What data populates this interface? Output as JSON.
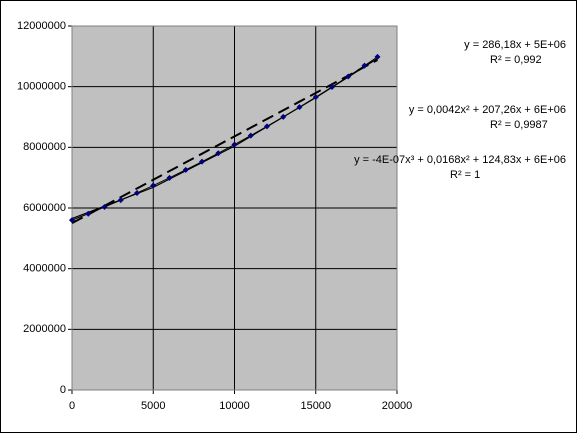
{
  "chart_data": {
    "type": "scatter",
    "xlim": [
      0,
      20000
    ],
    "xticks": [
      0,
      5000,
      10000,
      15000,
      20000
    ],
    "ylim": [
      0,
      12000000
    ],
    "yticks": [
      0,
      2000000,
      4000000,
      6000000,
      8000000,
      10000000,
      12000000
    ],
    "grid": true,
    "background": "#c0c0c0",
    "series": [
      {
        "color": "#000080",
        "x": [
          0,
          1000,
          2000,
          3000,
          4000,
          5000,
          6000,
          7000,
          8000,
          9000,
          10000,
          11000,
          12000,
          13000,
          14000,
          15000,
          16000,
          17000,
          18000,
          18800
        ],
        "values": [
          5600000,
          5811000,
          6031000,
          6260000,
          6496000,
          6741000,
          6995000,
          7257000,
          7527000,
          7806000,
          8093000,
          8388000,
          8692000,
          9004000,
          9325000,
          9654000,
          9991000,
          10337000,
          10692000,
          10981000
        ]
      }
    ],
    "trendlines": [
      {
        "color": "#000000",
        "style": "dashed",
        "x": [
          0,
          18800
        ],
        "values": [
          5500000,
          10880000
        ]
      },
      {
        "color": "#000000",
        "style": "solid",
        "x": [
          0,
          5000,
          10000,
          15000,
          18800
        ],
        "values": [
          5650000,
          6680000,
          8040000,
          9640000,
          10930000
        ]
      }
    ],
    "annotations": [
      "y = 286,18x + 5E+06",
      "R² = 0,992",
      "y = 0,0042x² + 207,26x + 6E+06",
      "R² = 0,9987",
      "y = -4E-07x³ + 0,0168x² + 124,83x + 6E+06",
      "R² = 1"
    ]
  }
}
